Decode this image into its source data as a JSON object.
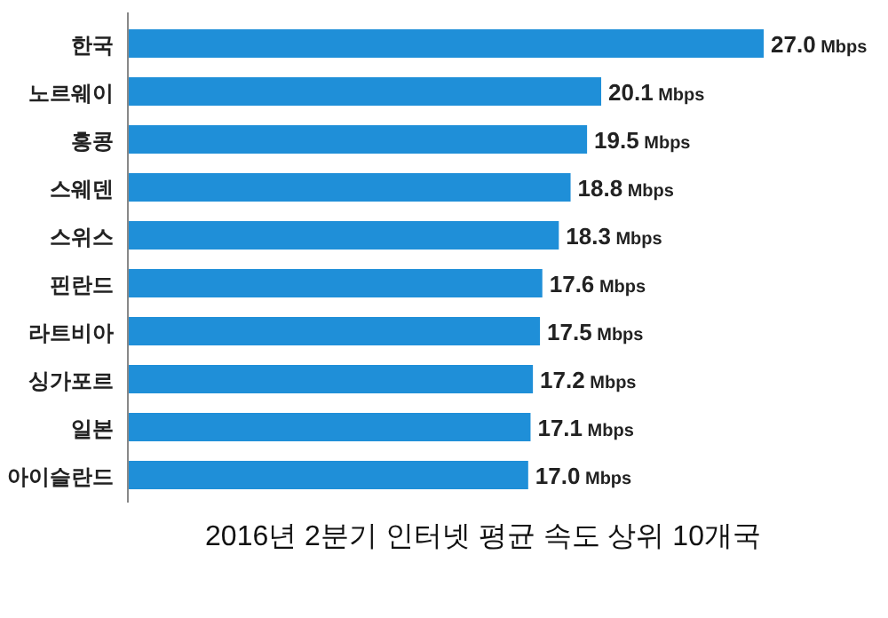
{
  "chart_data": {
    "type": "bar",
    "orientation": "horizontal",
    "title": "2016년 2분기 인터넷 평균 속도 상위 10개국",
    "categories": [
      "한국",
      "노르웨이",
      "홍콩",
      "스웨덴",
      "스위스",
      "핀란드",
      "라트비아",
      "싱가포르",
      "일본",
      "아이슬란드"
    ],
    "values": [
      27.0,
      20.1,
      19.5,
      18.8,
      18.3,
      17.6,
      17.5,
      17.2,
      17.1,
      17.0
    ],
    "value_labels": [
      "27.0 Mbps",
      "20.1 Mbps",
      "19.5 Mbps",
      "18.8 Mbps",
      "18.3 Mbps",
      "17.6 Mbps",
      "17.5 Mbps",
      "17.2 Mbps",
      "17.1 Mbps",
      "17.0 Mbps"
    ],
    "color": "#1f8fd8"
  }
}
